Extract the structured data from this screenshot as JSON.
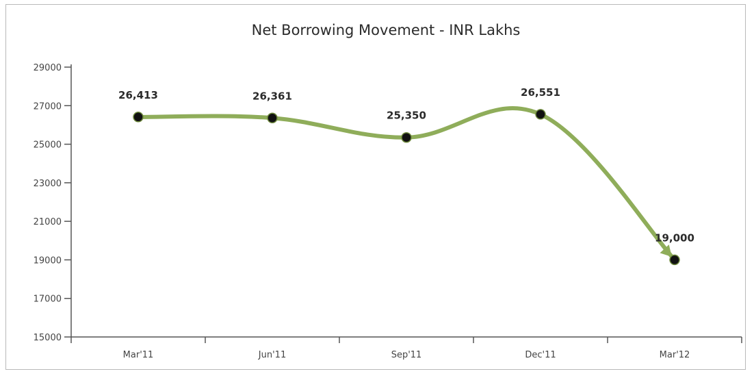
{
  "chart_data": {
    "type": "line",
    "title": "Net Borrowing Movement - INR Lakhs",
    "categories": [
      "Mar'11",
      "Jun'11",
      "Sep'11",
      "Dec'11",
      "Mar'12"
    ],
    "values": [
      26413,
      26361,
      25350,
      26551,
      19000
    ],
    "data_labels": [
      "26,413",
      "26,361",
      "25,350",
      "26,551",
      "19,000"
    ],
    "yticks": [
      "29000",
      "27000",
      "25000",
      "23000",
      "21000",
      "19000",
      "17000",
      "15000"
    ],
    "ytick_values": [
      29000,
      27000,
      25000,
      23000,
      21000,
      19000,
      17000,
      15000
    ],
    "ylim": [
      15000,
      29000
    ],
    "xlabel": "",
    "ylabel": "",
    "grid": false,
    "line_color": "#8fad5a",
    "marker_color": "#111111"
  }
}
